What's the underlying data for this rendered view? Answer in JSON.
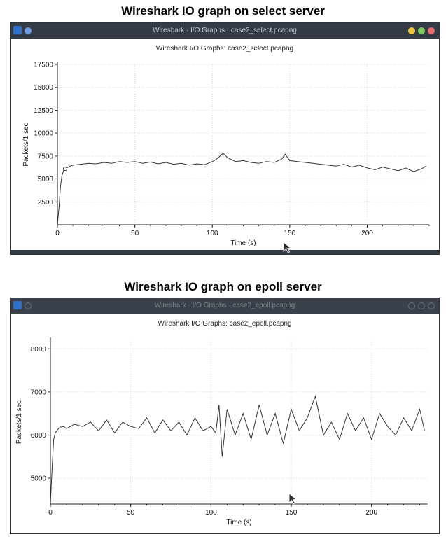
{
  "captions": {
    "top": "Wireshark IO graph on select server",
    "bottom": "Wireshark IO graph on epoll server"
  },
  "windows": [
    {
      "window_title": "Wireshark · I/O Graphs · case2_select.pcapng",
      "graph_title": "Wireshark I/O Graphs: case2_select.pcapng",
      "controls_colors": {
        "close": "#e8c542",
        "min": "#7bc95e",
        "max": "#e66d6d",
        "left_dot": "#6d9be0"
      },
      "icon": "wireshark-fin-icon"
    },
    {
      "window_title": "Wireshark · I/O Graphs · case2_epoll.pcapng",
      "graph_title": "Wireshark I/O Graphs: case2_epoll.pcapng",
      "icon": "wireshark-fin-icon"
    }
  ],
  "chart_data": [
    {
      "type": "line",
      "title": "Wireshark I/O Graphs: case2_select.pcapng",
      "xlabel": "Time (s)",
      "ylabel": "Packets/1 sec",
      "xlim": [
        0,
        240
      ],
      "ylim": [
        0,
        17500
      ],
      "xticks": [
        0,
        50,
        100,
        150,
        200
      ],
      "yticks": [
        2500,
        5000,
        7500,
        10000,
        12500,
        15000,
        17500
      ],
      "grid": true,
      "line_color": "#333333",
      "x": [
        0,
        1,
        2,
        3,
        4,
        5,
        6,
        8,
        10,
        15,
        20,
        25,
        30,
        35,
        40,
        45,
        50,
        55,
        60,
        65,
        70,
        75,
        80,
        85,
        90,
        95,
        100,
        103,
        105,
        107,
        110,
        115,
        120,
        125,
        130,
        135,
        140,
        145,
        147,
        150,
        155,
        160,
        165,
        170,
        175,
        180,
        185,
        190,
        195,
        200,
        205,
        210,
        215,
        220,
        225,
        230,
        235,
        238
      ],
      "y": [
        0,
        1800,
        4200,
        5400,
        5900,
        6100,
        6200,
        6400,
        6500,
        6600,
        6700,
        6650,
        6800,
        6700,
        6900,
        6800,
        6900,
        6700,
        6850,
        6650,
        6800,
        6600,
        6700,
        6500,
        6650,
        6550,
        6900,
        7200,
        7500,
        7800,
        7300,
        6900,
        7000,
        6800,
        6700,
        6900,
        6800,
        7200,
        7700,
        7000,
        6900,
        6800,
        6700,
        6600,
        6500,
        6400,
        6600,
        6300,
        6500,
        6200,
        6000,
        6300,
        6100,
        5900,
        6200,
        5800,
        6100,
        6400
      ],
      "marker": {
        "x": 5,
        "y": 6100
      }
    },
    {
      "type": "line",
      "title": "Wireshark I/O Graphs: case2_epoll.pcapng",
      "xlabel": "Time (s)",
      "ylabel": "Packets/1 sec",
      "xlim": [
        0,
        235
      ],
      "ylim": [
        4400,
        8200
      ],
      "xticks": [
        0,
        50,
        100,
        150,
        200
      ],
      "yticks": [
        5000,
        6000,
        7000,
        8000
      ],
      "grid": true,
      "line_color": "#333333",
      "x": [
        0,
        1,
        2,
        3,
        4,
        5,
        6,
        8,
        10,
        15,
        20,
        25,
        30,
        35,
        40,
        45,
        50,
        55,
        60,
        65,
        70,
        75,
        80,
        85,
        90,
        95,
        100,
        103,
        105,
        107,
        110,
        115,
        120,
        125,
        130,
        135,
        140,
        145,
        150,
        155,
        160,
        165,
        170,
        175,
        180,
        185,
        190,
        195,
        200,
        205,
        210,
        215,
        220,
        225,
        230,
        233
      ],
      "y": [
        4400,
        5200,
        5900,
        6050,
        6100,
        6150,
        6180,
        6200,
        6150,
        6250,
        6200,
        6300,
        6100,
        6350,
        6050,
        6300,
        6200,
        6150,
        6400,
        6050,
        6350,
        6100,
        6300,
        6000,
        6400,
        6100,
        6200,
        6050,
        6700,
        5500,
        6600,
        6000,
        6500,
        5900,
        6700,
        6000,
        6500,
        5800,
        6600,
        6100,
        6400,
        6900,
        6000,
        6300,
        5900,
        6500,
        6100,
        6400,
        5900,
        6500,
        6200,
        6000,
        6400,
        6100,
        6600,
        6100
      ]
    }
  ]
}
